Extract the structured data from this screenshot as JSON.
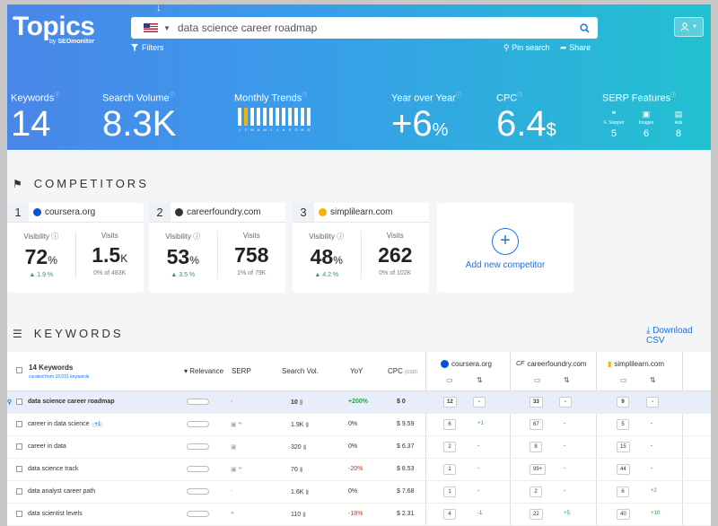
{
  "header": {
    "logo": "Topics",
    "logo_by": "by",
    "logo_brand": "SEOmonitor",
    "search_value": "data science career roadmap",
    "filters_label": "Filters",
    "pin_label": "Pin search",
    "share_label": "Share",
    "arrow_hint": "↓"
  },
  "metrics": {
    "keywords": {
      "label": "Keywords",
      "value": "14"
    },
    "search_volume": {
      "label": "Search Volume",
      "value": "8.3K"
    },
    "monthly_trends": {
      "label": "Monthly Trends",
      "months": [
        "J",
        "F",
        "M",
        "A",
        "M",
        "J",
        "J",
        "A",
        "S",
        "O",
        "N",
        "D"
      ],
      "highlight_index": 1
    },
    "yoy": {
      "label": "Year over Year",
      "value": "+6",
      "unit": "%"
    },
    "cpc": {
      "label": "CPC",
      "value": "6.4",
      "unit": "$"
    },
    "serp": {
      "label": "SERP Features",
      "items": [
        {
          "name": "F. Snippet",
          "count": "5",
          "icon": "quote-icon"
        },
        {
          "name": "Images",
          "count": "6",
          "icon": "images-icon"
        },
        {
          "name": "Ads",
          "count": "8",
          "icon": "ads-icon"
        }
      ]
    }
  },
  "competitors": {
    "title": "COMPETITORS",
    "add_label": "Add new competitor",
    "items": [
      {
        "rank": "1",
        "domain": "coursera.org",
        "color": "#0056d2",
        "vis_label": "Visibility",
        "vis": "72",
        "vis_unit": "%",
        "vis_change": "▲ 1.9 %",
        "visits_label": "Visits",
        "visits": "1.5",
        "visits_unit": "K",
        "visits_sub": "0% of 483K"
      },
      {
        "rank": "2",
        "domain": "careerfoundry.com",
        "color": "#333333",
        "vis_label": "Visibility",
        "vis": "53",
        "vis_unit": "%",
        "vis_change": "▲ 3.5 %",
        "visits_label": "Visits",
        "visits": "758",
        "visits_unit": "",
        "visits_sub": "1% of 79K"
      },
      {
        "rank": "3",
        "domain": "simplilearn.com",
        "color": "#f5b400",
        "vis_label": "Visibility",
        "vis": "48",
        "vis_unit": "%",
        "vis_change": "▲ 4.2 %",
        "visits_label": "Visits",
        "visits": "262",
        "visits_unit": "",
        "visits_sub": "0% of 102K"
      }
    ]
  },
  "keywords": {
    "title": "KEYWORDS",
    "download_label": "Download CSV",
    "count_label": "14 Keywords",
    "curated_label": "curated from 10,031 keywords",
    "columns": {
      "relevance": "▾ Relevance",
      "serp": "SERP",
      "search_vol": "Search Vol.",
      "yoy": "YoY",
      "cpc": "CPC",
      "cpc_unit": "(USD)"
    },
    "competitor_cols": [
      "coursera.org",
      "careerfoundry.com",
      "simplilearn.com"
    ],
    "rows": [
      {
        "kw": "data science career roadmap",
        "tag": "",
        "serp": "-",
        "vol": "10",
        "yoy": "+200%",
        "yoy_class": "pos",
        "cpc": "$ 0",
        "c1": "12",
        "d1": "-",
        "c2": "33",
        "d2": "-",
        "c3": "9",
        "d3": "-"
      },
      {
        "kw": "career in data science",
        "tag": "+1",
        "serp": "▣ ❝",
        "vol": "1.9K",
        "yoy": "0%",
        "yoy_class": "",
        "cpc": "$ 9.59",
        "c1": "6",
        "d1": "+1",
        "c2": "67",
        "d2": "-",
        "c3": "5",
        "d3": "-"
      },
      {
        "kw": "career in data",
        "tag": "",
        "serp": "▣",
        "vol": "320",
        "yoy": "0%",
        "yoy_class": "",
        "cpc": "$ 6.37",
        "c1": "2",
        "d1": "-",
        "c2": "8",
        "d2": "-",
        "c3": "15",
        "d3": "-"
      },
      {
        "kw": "data science track",
        "tag": "",
        "serp": "▣ ❝",
        "vol": "70",
        "yoy": "-20%",
        "yoy_class": "neg",
        "cpc": "$ 8.53",
        "c1": "1",
        "d1": "-",
        "c2": "99+",
        "d2": "-",
        "c3": "44",
        "d3": "-"
      },
      {
        "kw": "data analyst career path",
        "tag": "",
        "serp": "-",
        "vol": "1.6K",
        "yoy": "0%",
        "yoy_class": "",
        "cpc": "$ 7.68",
        "c1": "1",
        "d1": "-",
        "c2": "2",
        "d2": "-",
        "c3": "6",
        "d3": "+2"
      },
      {
        "kw": "data scientist levels",
        "tag": "",
        "serp": "❝",
        "vol": "110",
        "yoy": "-18%",
        "yoy_class": "neg",
        "cpc": "$ 2.31",
        "c1": "4",
        "d1": "-1",
        "c2": "22",
        "d2": "+5",
        "c3": "40",
        "d3": "+10"
      }
    ]
  }
}
